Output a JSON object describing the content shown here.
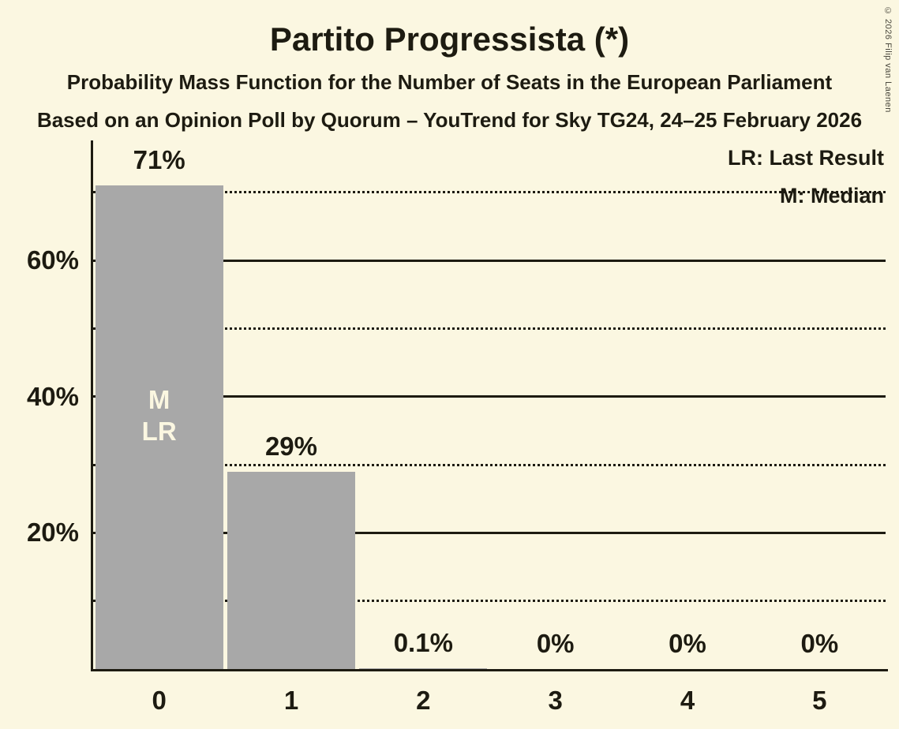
{
  "title": "Partito Progressista (*)",
  "subtitle_line1": "Probability Mass Function for the Number of Seats in the European Parliament",
  "subtitle_line2": "Based on an Opinion Poll by Quorum – YouTrend for Sky TG24, 24–25 February 2026",
  "copyright": "© 2026 Filip van Laenen",
  "legend": {
    "last_result": "LR: Last Result",
    "median": "M: Median"
  },
  "colors": {
    "background": "#FBF7E1",
    "bar": "#A8A8A8",
    "text": "#1D1B11",
    "bar_inner_label": "#FBF7E1"
  },
  "chart_data": {
    "type": "bar",
    "title": "Partito Progressista (*)",
    "categories": [
      "0",
      "1",
      "2",
      "3",
      "4",
      "5"
    ],
    "values": [
      71,
      29,
      0.1,
      0,
      0,
      0
    ],
    "value_labels": [
      "71%",
      "29%",
      "0.1%",
      "0%",
      "0%",
      "0%"
    ],
    "xlabel": "",
    "ylabel": "",
    "ylim": [
      0,
      77
    ],
    "yticks": [
      {
        "value": 20,
        "label": "20%"
      },
      {
        "value": 40,
        "label": "40%"
      },
      {
        "value": 60,
        "label": "60%"
      }
    ],
    "gridlines": {
      "solid": [
        20,
        40,
        60
      ],
      "dotted": [
        10,
        30,
        50,
        70
      ]
    },
    "grid": true,
    "legend_position": "top-right",
    "annotations": [
      {
        "seat_index": 0,
        "lines": [
          "M",
          "LR"
        ],
        "meaning": "Median and Last Result at 0 seats"
      }
    ]
  }
}
